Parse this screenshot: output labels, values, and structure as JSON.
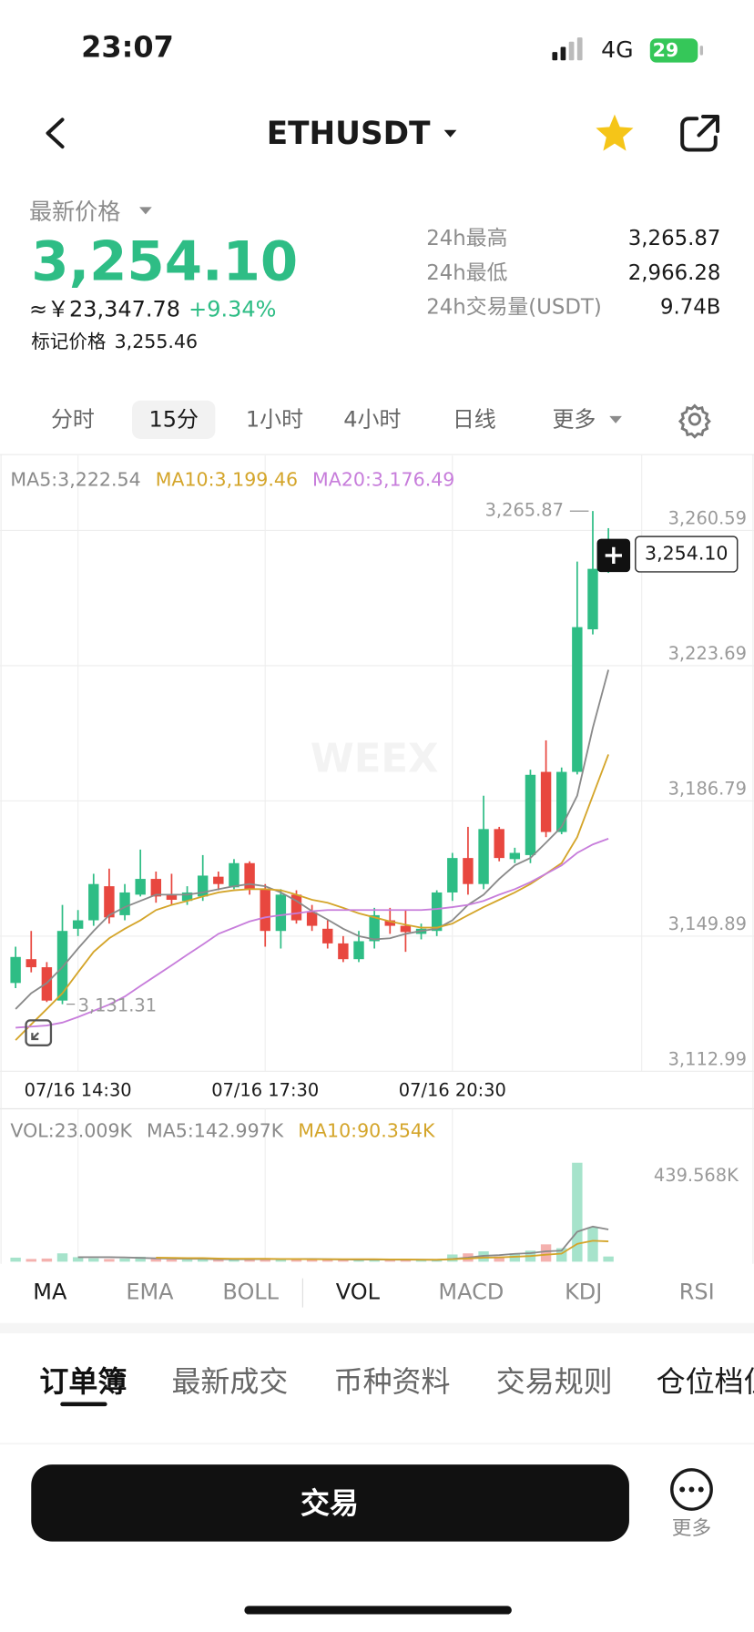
{
  "status_bar": {
    "time": "23:07",
    "network": "4G",
    "battery": "29"
  },
  "header": {
    "symbol": "ETHUSDT"
  },
  "price": {
    "label": "最新价格",
    "last": "3,254.10",
    "cny": "≈￥23,347.78",
    "change": "+9.34%",
    "mark_label": "标记价格",
    "mark": "3,255.46"
  },
  "stats": [
    {
      "label": "24h最高",
      "value": "3,265.87"
    },
    {
      "label": "24h最低",
      "value": "2,966.28"
    },
    {
      "label": "24h交易量(USDT)",
      "value": "9.74B"
    }
  ],
  "intervals": [
    "分时",
    "15分",
    "1小时",
    "4小时",
    "日线",
    "更多"
  ],
  "watermark": "WEEX",
  "chart_data": [
    {
      "type": "candlestick",
      "up_color": "#2ebd85",
      "down_color": "#e8473f",
      "grid": true,
      "categories": [
        null,
        null,
        null,
        null,
        "07/16 14:30",
        null,
        null,
        null,
        null,
        null,
        null,
        null,
        null,
        null,
        null,
        null,
        "07/16 17:30",
        null,
        null,
        null,
        null,
        null,
        null,
        null,
        null,
        null,
        null,
        null,
        "07/16 20:30",
        null,
        null,
        null,
        null,
        null,
        null,
        null,
        null,
        null,
        null
      ],
      "open": [
        3137.1,
        3143.6,
        3141.4,
        3132.3,
        3151.9,
        3154.2,
        3163.5,
        3155.6,
        3161.2,
        3165.5,
        3161.2,
        3159.5,
        3160.7,
        3166.1,
        3163.2,
        3169.8,
        3162.7,
        3151.3,
        3161.2,
        3156.4,
        3151.9,
        3147.9,
        3143.6,
        3148.5,
        3154.2,
        3152.7,
        3150.5,
        3151.3,
        3161.8,
        3171.2,
        3164.1,
        3179.1,
        3170.9,
        3172.0,
        3194.7,
        3178.3,
        3194.7,
        3233.6,
        3250.1
      ],
      "high": [
        3147.0,
        3151.3,
        3142.8,
        3158.4,
        3157.0,
        3166.9,
        3168.3,
        3164.1,
        3173.5,
        3167.5,
        3166.9,
        3163.5,
        3172.0,
        3167.5,
        3170.9,
        3170.3,
        3164.1,
        3162.7,
        3162.4,
        3158.4,
        3154.2,
        3149.9,
        3151.3,
        3157.6,
        3157.6,
        3157.0,
        3153.3,
        3162.4,
        3172.6,
        3179.7,
        3188.2,
        3179.7,
        3174.0,
        3195.3,
        3203.3,
        3195.9,
        3252.1,
        3265.87,
        3261.2
      ],
      "low": [
        3135.7,
        3140.0,
        3131.9,
        3131.31,
        3149.9,
        3152.7,
        3153.3,
        3154.2,
        3160.7,
        3159.0,
        3158.4,
        3158.4,
        3159.5,
        3162.4,
        3162.7,
        3161.2,
        3147.0,
        3146.5,
        3153.3,
        3151.3,
        3146.5,
        3142.8,
        3142.8,
        3146.5,
        3150.5,
        3145.6,
        3149.0,
        3149.9,
        3159.5,
        3161.2,
        3162.7,
        3170.3,
        3169.8,
        3169.8,
        3176.9,
        3177.7,
        3194.0,
        3232.2,
        3249.0
      ],
      "close": [
        3144.2,
        3141.4,
        3132.3,
        3151.3,
        3154.2,
        3164.1,
        3155.0,
        3161.8,
        3165.5,
        3160.7,
        3159.8,
        3161.8,
        3166.4,
        3164.1,
        3169.8,
        3162.7,
        3151.3,
        3161.2,
        3154.2,
        3152.7,
        3147.9,
        3143.6,
        3148.5,
        3155.6,
        3152.7,
        3151.0,
        3151.9,
        3161.8,
        3171.2,
        3164.1,
        3179.1,
        3171.2,
        3172.6,
        3193.9,
        3178.3,
        3194.7,
        3234.2,
        3250.1,
        3254.1
      ],
      "series": [
        {
          "name": "MA5:3,222.54",
          "color": "#8a8a8a",
          "values": [
            3130.0,
            3134.3,
            3137.1,
            3141.4,
            3146.5,
            3151.3,
            3155.6,
            3157.8,
            3159.5,
            3161.2,
            3161.2,
            3161.2,
            3161.8,
            3162.7,
            3163.5,
            3164.1,
            3163.5,
            3161.8,
            3159.5,
            3156.7,
            3154.4,
            3151.9,
            3149.9,
            3149.0,
            3149.3,
            3150.5,
            3151.3,
            3151.9,
            3154.2,
            3158.4,
            3161.2,
            3165.5,
            3169.2,
            3171.2,
            3175.4,
            3179.7,
            3188.2,
            3206.7,
            3222.54
          ]
        },
        {
          "name": "MA10:3,199.46",
          "color": "#d4a52a",
          "values": [
            3121.5,
            3125.8,
            3130.0,
            3134.3,
            3140.0,
            3145.6,
            3149.3,
            3151.9,
            3154.2,
            3157.0,
            3158.4,
            3159.5,
            3160.7,
            3161.8,
            3162.4,
            3162.7,
            3162.7,
            3162.4,
            3161.2,
            3159.8,
            3159.0,
            3157.6,
            3156.1,
            3155.0,
            3153.9,
            3153.0,
            3152.2,
            3152.2,
            3153.3,
            3155.6,
            3157.8,
            3159.8,
            3161.8,
            3164.1,
            3166.9,
            3169.8,
            3176.9,
            3188.2,
            3199.46
          ]
        },
        {
          "name": "MA20:3,176.49",
          "color": "#c77ddb",
          "values": [
            3124.9,
            3125.2,
            3125.5,
            3126.3,
            3127.8,
            3129.5,
            3131.2,
            3133.4,
            3136.3,
            3139.1,
            3141.9,
            3144.8,
            3147.6,
            3150.5,
            3152.2,
            3153.9,
            3155.0,
            3155.6,
            3156.1,
            3156.7,
            3157.0,
            3157.0,
            3157.0,
            3157.0,
            3157.0,
            3157.0,
            3157.0,
            3157.3,
            3157.8,
            3158.4,
            3159.5,
            3161.2,
            3162.7,
            3164.6,
            3166.9,
            3169.2,
            3172.6,
            3174.9,
            3176.49
          ]
        }
      ],
      "ylim": [
        3112.99,
        3281.0
      ],
      "yticks": [
        {
          "value": 3112.99,
          "label": "3,112.99"
        },
        {
          "value": 3149.89,
          "label": "3,149.89"
        },
        {
          "value": 3186.79,
          "label": "3,186.79"
        },
        {
          "value": 3223.69,
          "label": "3,223.69"
        },
        {
          "value": 3260.59,
          "label": "3,260.59"
        }
      ],
      "annotations": [
        {
          "label": "3,265.87",
          "value": 3265.87
        },
        {
          "label": "3,131.31",
          "value": 3131.31
        }
      ],
      "last_price": {
        "value": 3254.1,
        "label": "3,254.10"
      }
    },
    {
      "type": "bar",
      "up_color": "#a6e3cb",
      "down_color": "#f4b1ae",
      "series": [
        {
          "name": "VOL:23.009K",
          "color": "#8a8a8a",
          "values": [
            18,
            12,
            14,
            37,
            20,
            15,
            12,
            14,
            22,
            12,
            10,
            9,
            14,
            8,
            12,
            10,
            16,
            14,
            10,
            9,
            8,
            9,
            10,
            12,
            7,
            8,
            6,
            9,
            32,
            37,
            46,
            23,
            37,
            49,
            77,
            60,
            439.568,
            153,
            23.009
          ]
        },
        {
          "name": "MA5:142.997K",
          "type": "line",
          "color": "#8a8a8a",
          "values": [
            null,
            null,
            null,
            null,
            20,
            20,
            20,
            19,
            17,
            15,
            14,
            13,
            13,
            11,
            11,
            11,
            12,
            12,
            12,
            12,
            11,
            10,
            9,
            10,
            9,
            9,
            9,
            8,
            12,
            18,
            26,
            29,
            35,
            38,
            46,
            49,
            133,
            156,
            142.997
          ]
        },
        {
          "name": "MA10:90.354K",
          "type": "line",
          "color": "#d4a52a",
          "values": [
            null,
            null,
            null,
            null,
            null,
            null,
            null,
            null,
            null,
            18,
            17,
            16,
            16,
            14,
            13,
            13,
            13,
            12,
            12,
            11,
            11,
            11,
            11,
            11,
            10,
            10,
            9,
            9,
            11,
            14,
            18,
            19,
            22,
            25,
            31,
            36,
            79,
            93,
            90.354
          ]
        }
      ],
      "ylim": [
        0,
        670
      ],
      "yticks": [
        {
          "value": 439.568,
          "label": "439.568K"
        }
      ]
    }
  ],
  "indicators": [
    "MA",
    "EMA",
    "BOLL",
    "VOL",
    "MACD",
    "KDJ",
    "RSI"
  ],
  "tabs": [
    "订单簿",
    "最新成交",
    "币种资料",
    "交易规则",
    "仓位档位"
  ],
  "footer": {
    "trade": "交易",
    "more": "更多"
  }
}
